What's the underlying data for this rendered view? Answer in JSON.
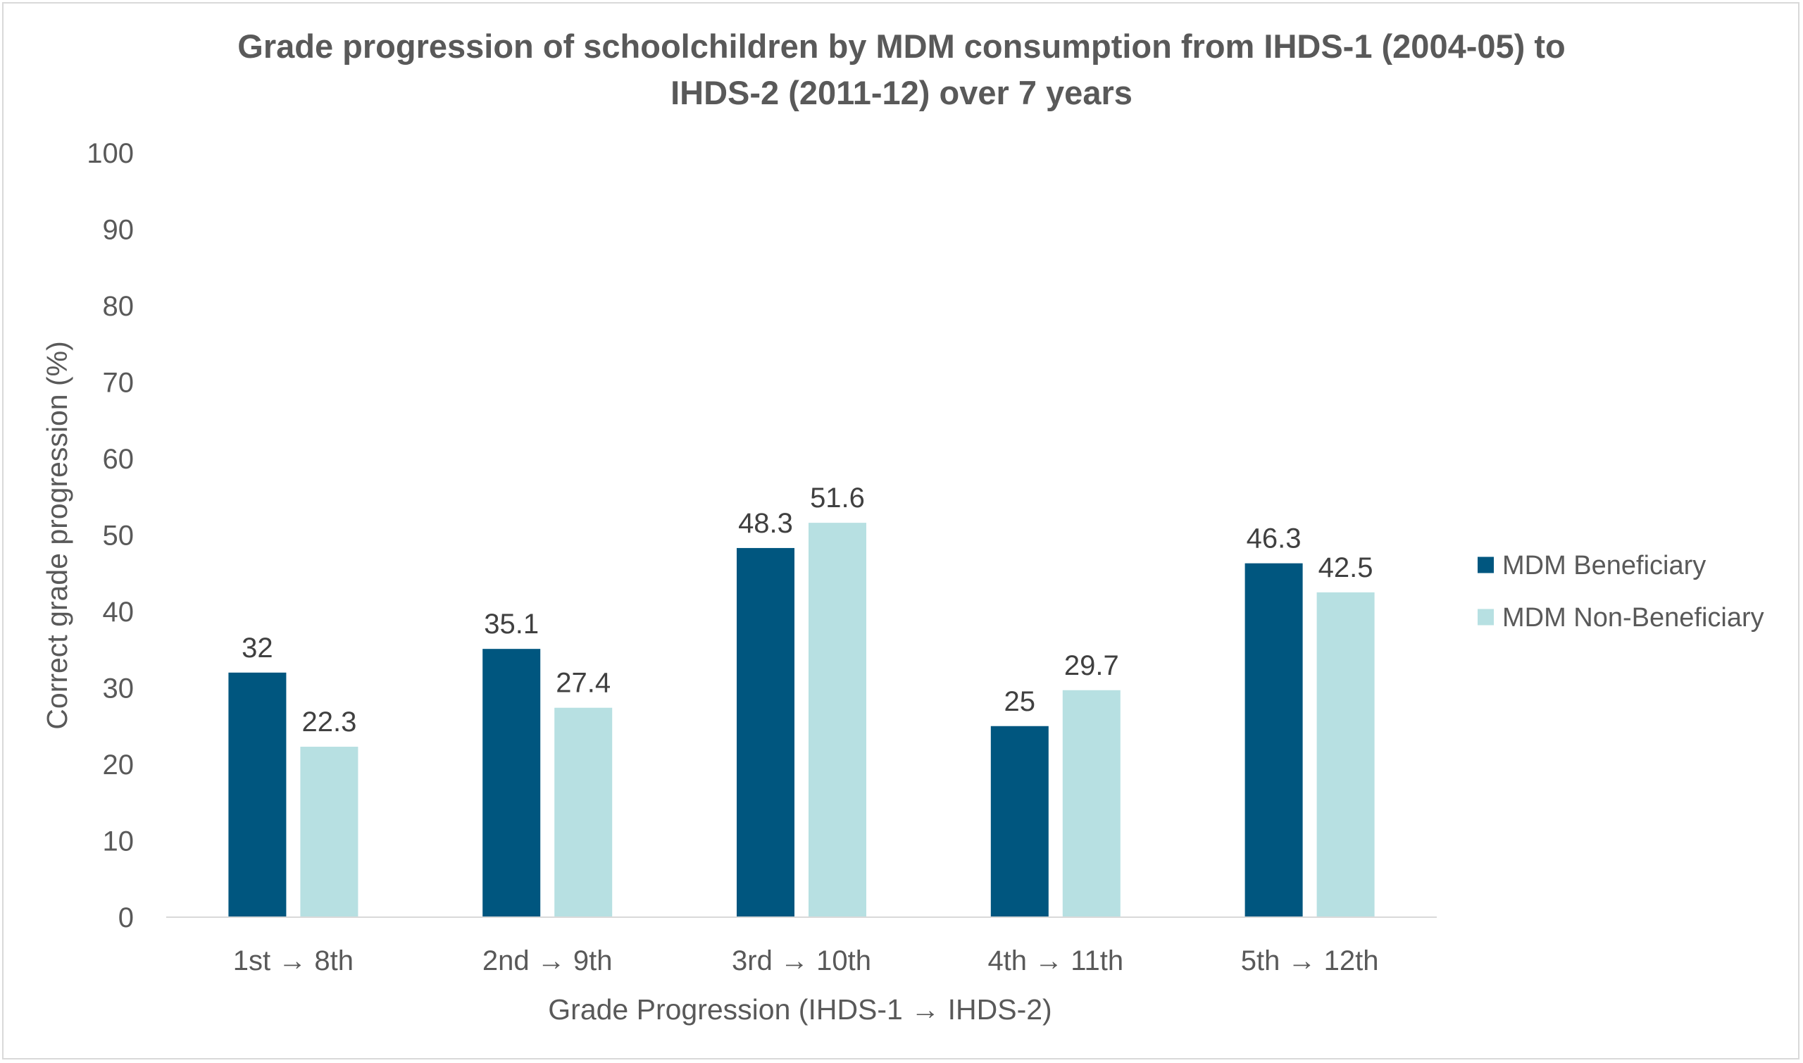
{
  "chart_data": {
    "type": "bar",
    "title_lines": [
      "Grade progression of schoolchildren by MDM consumption from IHDS-1 (2004-05) to",
      "IHDS-2 (2011-12) over 7 years"
    ],
    "xlabel": "Grade Progression (IHDS-1 → IHDS-2)",
    "ylabel": "Correct grade progression (%)",
    "ylim": [
      0,
      100
    ],
    "yticks": [
      "0",
      "10",
      "20",
      "30",
      "40",
      "50",
      "60",
      "70",
      "80",
      "90",
      "100"
    ],
    "categories": [
      "1st → 8th",
      "2nd → 9th",
      "3rd → 10th",
      "4th → 11th",
      "5th → 12th"
    ],
    "series": [
      {
        "name": "MDM Beneficiary",
        "color": "#00567f",
        "values": [
          32,
          35.1,
          48.3,
          25,
          46.3
        ],
        "labels": [
          "32",
          "35.1",
          "48.3",
          "25",
          "46.3"
        ]
      },
      {
        "name": "MDM Non-Beneficiary",
        "color": "#b7e0e2",
        "values": [
          22.3,
          27.4,
          51.6,
          29.7,
          42.5
        ],
        "labels": [
          "22.3",
          "27.4",
          "51.6",
          "29.7",
          "42.5"
        ]
      }
    ],
    "grid": false,
    "legend_position": "right",
    "data_labels": true
  }
}
